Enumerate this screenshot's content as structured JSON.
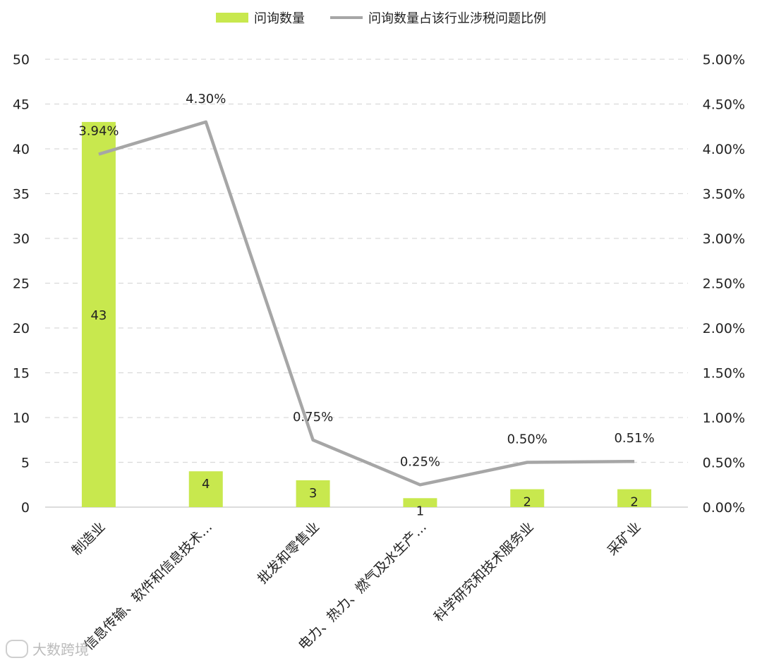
{
  "legend": {
    "bar_label": "问询数量",
    "line_label": "问询数量占该行业涉税问题比例"
  },
  "colors": {
    "bar": "#c8e84e",
    "line": "#a6a6a6",
    "grid": "#d9d9d9"
  },
  "watermark": "大数跨境",
  "chart_data": {
    "type": "bar",
    "categories": [
      "制造业",
      "信息传输、软件和信息技术…",
      "批发和零售业",
      "电力、热力、燃气及水生产…",
      "科学研究和技术服务业",
      "采矿业"
    ],
    "series": [
      {
        "name": "问询数量",
        "type": "bar",
        "axis": "left",
        "values": [
          43,
          4,
          3,
          1,
          2,
          2
        ],
        "labels": [
          "43",
          "4",
          "3",
          "1",
          "2",
          "2"
        ]
      },
      {
        "name": "问询数量占该行业涉税问题比例",
        "type": "line",
        "axis": "right",
        "values": [
          3.94,
          4.3,
          0.75,
          0.25,
          0.5,
          0.51
        ],
        "labels": [
          "3.94%",
          "4.30%",
          "0.75%",
          "0.25%",
          "0.50%",
          "0.51%"
        ]
      }
    ],
    "left_axis": {
      "min": 0,
      "max": 50,
      "ticks": [
        "0",
        "5",
        "10",
        "15",
        "20",
        "25",
        "30",
        "35",
        "40",
        "45",
        "50"
      ]
    },
    "right_axis": {
      "min": 0,
      "max": 5,
      "ticks": [
        "0.00%",
        "0.50%",
        "1.00%",
        "1.50%",
        "2.00%",
        "2.50%",
        "3.00%",
        "3.50%",
        "4.00%",
        "4.50%",
        "5.00%"
      ]
    },
    "grid": true,
    "legend_position": "top"
  }
}
